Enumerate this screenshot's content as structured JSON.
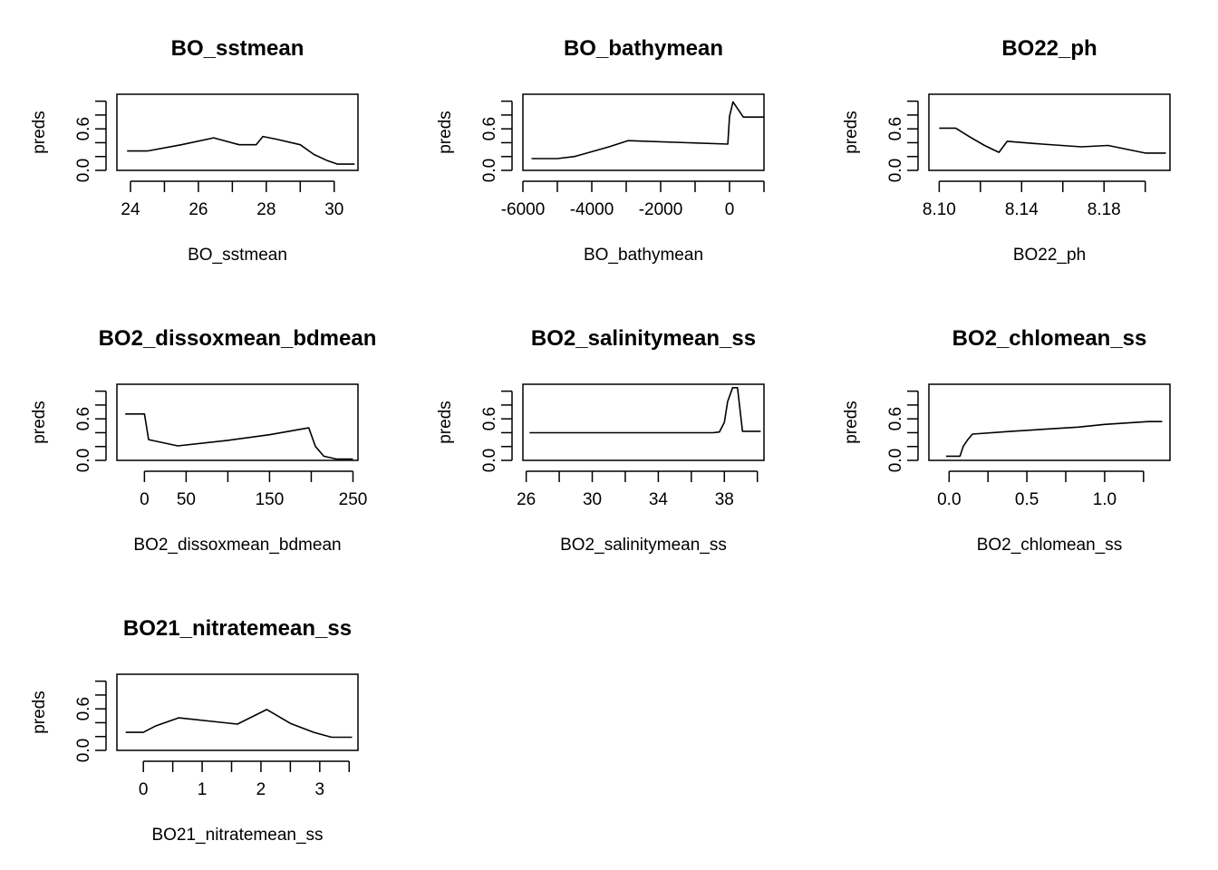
{
  "figure": {
    "background": "#ffffff",
    "line_color": "#000000"
  },
  "chart_data": [
    {
      "type": "line",
      "title": "BO_sstmean",
      "xlabel": "BO_sstmean",
      "ylabel": "preds",
      "xlim": [
        23.6,
        30.7
      ],
      "ylim": [
        0,
        1.1
      ],
      "xticks": [
        24,
        25,
        26,
        27,
        28,
        29,
        30
      ],
      "xtick_labels": [
        "24",
        "",
        "26",
        "",
        "28",
        "",
        "30"
      ],
      "yticks": [
        0,
        0.2,
        0.4,
        0.6,
        0.8,
        1.0
      ],
      "ytick_labels": [
        "0.0",
        "",
        "",
        "0.6",
        "",
        ""
      ],
      "x": [
        23.9,
        24.5,
        25.5,
        26.45,
        27.2,
        27.7,
        27.9,
        28.3,
        29.0,
        29.4,
        29.8,
        30.1,
        30.6
      ],
      "y": [
        0.28,
        0.28,
        0.37,
        0.47,
        0.37,
        0.37,
        0.49,
        0.45,
        0.37,
        0.23,
        0.14,
        0.09,
        0.09
      ]
    },
    {
      "type": "line",
      "title": "BO_bathymean",
      "xlabel": "BO_bathymean",
      "ylabel": "preds",
      "xlim": [
        -6000,
        1000
      ],
      "ylim": [
        0,
        1.1
      ],
      "xticks": [
        -6000,
        -5000,
        -4000,
        -3000,
        -2000,
        -1000,
        0,
        1000
      ],
      "xtick_labels": [
        "-6000",
        "",
        "-4000",
        "",
        "-2000",
        "",
        "0",
        ""
      ],
      "yticks": [
        0,
        0.2,
        0.4,
        0.6,
        0.8,
        1.0
      ],
      "ytick_labels": [
        "0.0",
        "",
        "",
        "0.6",
        "",
        ""
      ],
      "x": [
        -5750,
        -5000,
        -4500,
        -4000,
        -3500,
        -2950,
        -50,
        0,
        100,
        400,
        1000
      ],
      "y": [
        0.17,
        0.17,
        0.2,
        0.27,
        0.34,
        0.43,
        0.38,
        0.78,
        0.99,
        0.77,
        0.77
      ]
    },
    {
      "type": "line",
      "title": "BO22_ph",
      "xlabel": "BO22_ph",
      "ylabel": "preds",
      "xlim": [
        8.095,
        8.212
      ],
      "ylim": [
        0,
        1.1
      ],
      "xticks": [
        8.1,
        8.12,
        8.14,
        8.16,
        8.18,
        8.2
      ],
      "xtick_labels": [
        "8.10",
        "",
        "8.14",
        "",
        "8.18",
        ""
      ],
      "yticks": [
        0,
        0.2,
        0.4,
        0.6,
        0.8,
        1.0
      ],
      "ytick_labels": [
        "0.0",
        "",
        "",
        "0.6",
        "",
        ""
      ],
      "x": [
        8.1,
        8.108,
        8.115,
        8.122,
        8.129,
        8.133,
        8.15,
        8.169,
        8.182,
        8.2,
        8.21
      ],
      "y": [
        0.61,
        0.61,
        0.48,
        0.36,
        0.26,
        0.42,
        0.38,
        0.34,
        0.36,
        0.25,
        0.25
      ]
    },
    {
      "type": "line",
      "title": "BO2_dissoxmean_bdmean",
      "xlabel": "BO2_dissoxmean_bdmean",
      "ylabel": "preds",
      "xlim": [
        -33,
        256
      ],
      "ylim": [
        0,
        1.1
      ],
      "xticks": [
        0,
        50,
        100,
        150,
        200,
        250
      ],
      "xtick_labels": [
        "0",
        "50",
        "",
        "150",
        "",
        "250"
      ],
      "yticks": [
        0,
        0.2,
        0.4,
        0.6,
        0.8,
        1.0
      ],
      "ytick_labels": [
        "0.0",
        "",
        "",
        "0.6",
        "",
        ""
      ],
      "x": [
        -23,
        0,
        5,
        40,
        100,
        150,
        197,
        205,
        215,
        230,
        250
      ],
      "y": [
        0.67,
        0.67,
        0.3,
        0.21,
        0.29,
        0.37,
        0.47,
        0.2,
        0.06,
        0.02,
        0.02
      ]
    },
    {
      "type": "line",
      "title": "BO2_salinitymean_ss",
      "xlabel": "BO2_salinitymean_ss",
      "ylabel": "preds",
      "xlim": [
        25.8,
        40.4
      ],
      "ylim": [
        0,
        1.1
      ],
      "xticks": [
        26,
        28,
        30,
        32,
        34,
        36,
        38,
        40
      ],
      "xtick_labels": [
        "26",
        "",
        "30",
        "",
        "34",
        "",
        "38",
        ""
      ],
      "yticks": [
        0,
        0.2,
        0.4,
        0.6,
        0.8,
        1.0
      ],
      "ytick_labels": [
        "0.0",
        "",
        "",
        "0.6",
        "",
        ""
      ],
      "x": [
        26.2,
        37.3,
        37.7,
        38.0,
        38.2,
        38.5,
        38.8,
        39.1,
        39.1,
        40.2
      ],
      "y": [
        0.4,
        0.4,
        0.41,
        0.55,
        0.85,
        1.05,
        1.05,
        0.42,
        0.42,
        0.42
      ]
    },
    {
      "type": "line",
      "title": "BO2_chlomean_ss",
      "xlabel": "BO2_chlomean_ss",
      "ylabel": "preds",
      "xlim": [
        -0.13,
        1.42
      ],
      "ylim": [
        0,
        1.1
      ],
      "xticks": [
        0,
        0.25,
        0.5,
        0.75,
        1.0,
        1.25
      ],
      "xtick_labels": [
        "0.0",
        "",
        "0.5",
        "",
        "1.0",
        ""
      ],
      "yticks": [
        0,
        0.2,
        0.4,
        0.6,
        0.8,
        1.0
      ],
      "ytick_labels": [
        "0.0",
        "",
        "",
        "0.6",
        "",
        ""
      ],
      "x": [
        -0.02,
        0.07,
        0.09,
        0.12,
        0.15,
        0.4,
        0.83,
        1.0,
        1.28,
        1.37
      ],
      "y": [
        0.06,
        0.06,
        0.2,
        0.3,
        0.38,
        0.42,
        0.48,
        0.52,
        0.56,
        0.56
      ]
    },
    {
      "type": "line",
      "title": "BO21_nitratemean_ss",
      "xlabel": "BO21_nitratemean_ss",
      "ylabel": "preds",
      "xlim": [
        -0.45,
        3.65
      ],
      "ylim": [
        0,
        1.1
      ],
      "xticks": [
        0,
        0.5,
        1,
        1.5,
        2,
        2.5,
        3,
        3.5
      ],
      "xtick_labels": [
        "0",
        "",
        "1",
        "",
        "2",
        "",
        "3",
        ""
      ],
      "yticks": [
        0,
        0.2,
        0.4,
        0.6,
        0.8,
        1.0
      ],
      "ytick_labels": [
        "0.0",
        "",
        "",
        "0.6",
        "",
        ""
      ],
      "x": [
        -0.3,
        0,
        0.2,
        0.6,
        1.6,
        2.1,
        2.5,
        2.9,
        3.2,
        3.55
      ],
      "y": [
        0.26,
        0.26,
        0.35,
        0.47,
        0.38,
        0.59,
        0.39,
        0.26,
        0.19,
        0.19
      ]
    }
  ]
}
